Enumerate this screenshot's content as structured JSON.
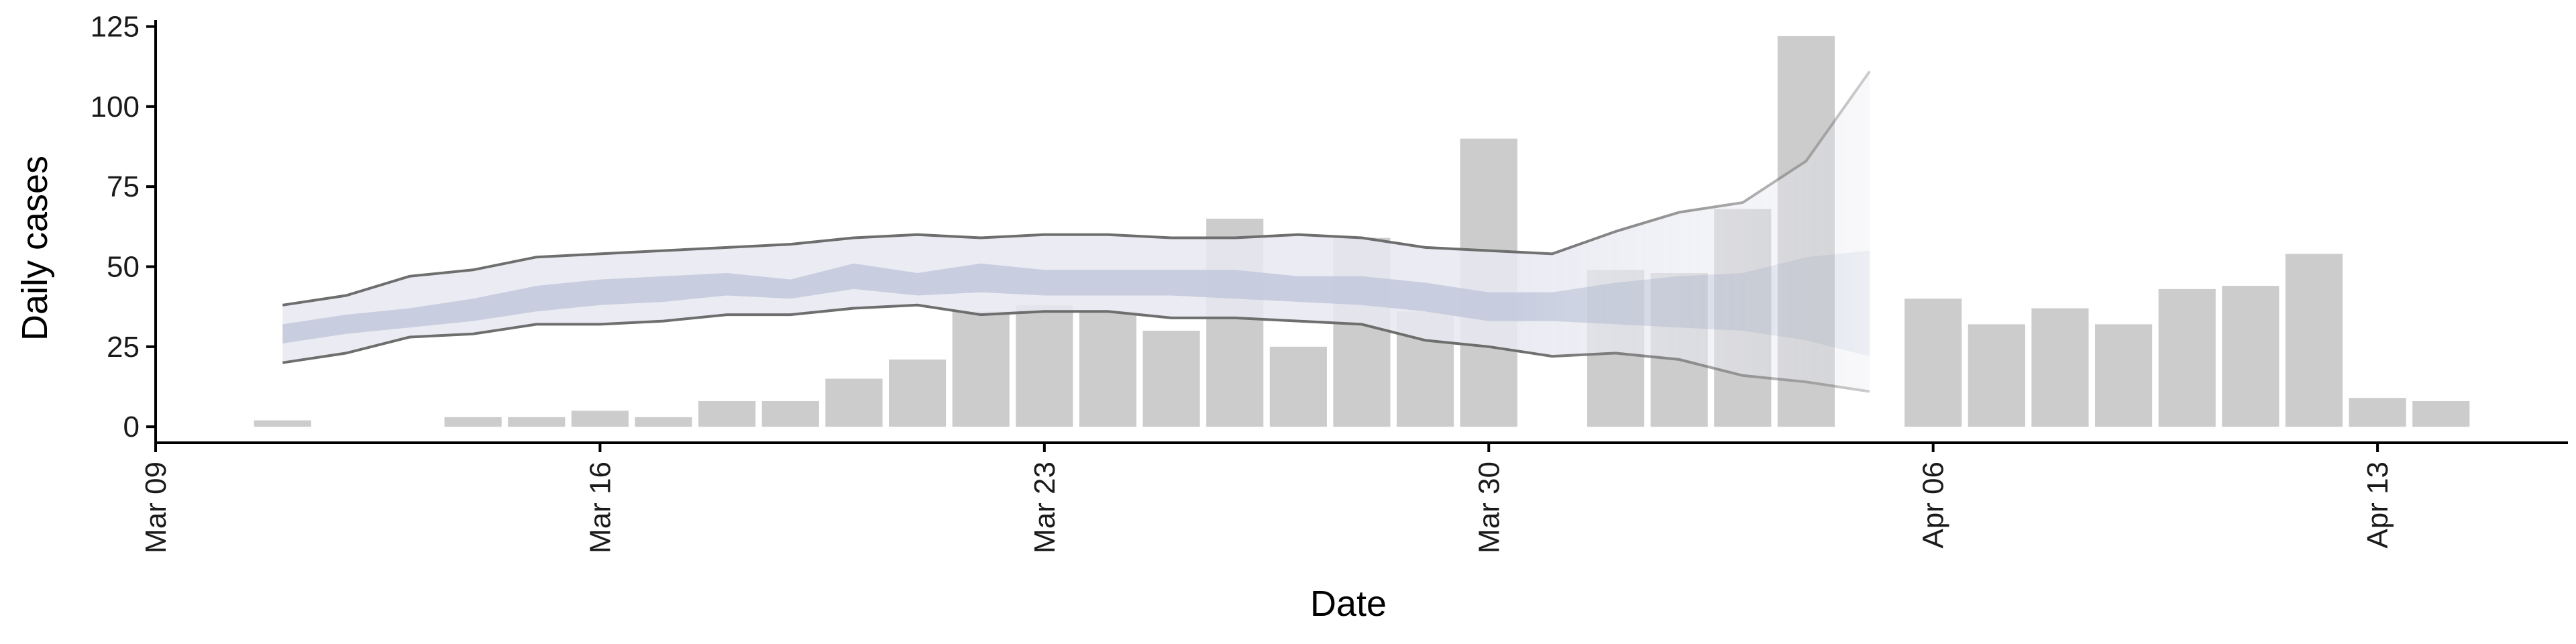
{
  "chart_data": {
    "type": "bar",
    "xlabel": "Date",
    "ylabel": "Daily cases",
    "xlim": [
      "2020-03-09",
      "2020-04-16"
    ],
    "ylim": [
      -5,
      127
    ],
    "x_ticks": [
      {
        "date": "2020-03-09",
        "label": "Mar 09"
      },
      {
        "date": "2020-03-16",
        "label": "Mar 16"
      },
      {
        "date": "2020-03-23",
        "label": "Mar 23"
      },
      {
        "date": "2020-03-30",
        "label": "Mar 30"
      },
      {
        "date": "2020-04-06",
        "label": "Apr 06"
      },
      {
        "date": "2020-04-13",
        "label": "Apr 13"
      }
    ],
    "y_ticks": [
      0,
      25,
      50,
      75,
      100,
      125
    ],
    "grid": false,
    "legend": "none",
    "colors": {
      "bars": "#cccccc",
      "outer_band": "#e8e9f1",
      "inner_band": "#c2c9dc",
      "bound_line": "#6e6e6e",
      "axis": "#000000"
    },
    "bars": [
      {
        "date": "2020-03-11",
        "value": 2
      },
      {
        "date": "2020-03-14",
        "value": 3
      },
      {
        "date": "2020-03-15",
        "value": 3
      },
      {
        "date": "2020-03-16",
        "value": 5
      },
      {
        "date": "2020-03-17",
        "value": 3
      },
      {
        "date": "2020-03-18",
        "value": 8
      },
      {
        "date": "2020-03-19",
        "value": 8
      },
      {
        "date": "2020-03-20",
        "value": 15
      },
      {
        "date": "2020-03-21",
        "value": 21
      },
      {
        "date": "2020-03-22",
        "value": 36
      },
      {
        "date": "2020-03-23",
        "value": 38
      },
      {
        "date": "2020-03-24",
        "value": 36
      },
      {
        "date": "2020-03-25",
        "value": 30
      },
      {
        "date": "2020-03-26",
        "value": 65
      },
      {
        "date": "2020-03-27",
        "value": 25
      },
      {
        "date": "2020-03-28",
        "value": 59
      },
      {
        "date": "2020-03-29",
        "value": 36
      },
      {
        "date": "2020-03-30",
        "value": 90
      },
      {
        "date": "2020-04-01",
        "value": 49
      },
      {
        "date": "2020-04-02",
        "value": 48
      },
      {
        "date": "2020-04-03",
        "value": 68
      },
      {
        "date": "2020-04-04",
        "value": 122
      },
      {
        "date": "2020-04-06",
        "value": 40
      },
      {
        "date": "2020-04-07",
        "value": 32
      },
      {
        "date": "2020-04-08",
        "value": 37
      },
      {
        "date": "2020-04-09",
        "value": 32
      },
      {
        "date": "2020-04-10",
        "value": 43
      },
      {
        "date": "2020-04-11",
        "value": 44
      },
      {
        "date": "2020-04-12",
        "value": 54
      },
      {
        "date": "2020-04-13",
        "value": 9
      },
      {
        "date": "2020-04-14",
        "value": 8
      }
    ],
    "estimate_dates": [
      "2020-03-11",
      "2020-03-12",
      "2020-03-13",
      "2020-03-14",
      "2020-03-15",
      "2020-03-16",
      "2020-03-17",
      "2020-03-18",
      "2020-03-19",
      "2020-03-20",
      "2020-03-21",
      "2020-03-22",
      "2020-03-23",
      "2020-03-24",
      "2020-03-25",
      "2020-03-26",
      "2020-03-27",
      "2020-03-28",
      "2020-03-29",
      "2020-03-30",
      "2020-03-31",
      "2020-04-01",
      "2020-04-02",
      "2020-04-03",
      "2020-04-04",
      "2020-04-05"
    ],
    "series": [
      {
        "role": "upper_90",
        "values": [
          38,
          41,
          47,
          49,
          53,
          54,
          55,
          56,
          57,
          59,
          60,
          59,
          60,
          60,
          59,
          59,
          60,
          59,
          56,
          55,
          54,
          61,
          67,
          70,
          83,
          111
        ]
      },
      {
        "role": "upper_50",
        "values": [
          32,
          35,
          37,
          40,
          44,
          46,
          47,
          48,
          46,
          51,
          48,
          51,
          49,
          49,
          49,
          49,
          47,
          47,
          45,
          42,
          42,
          45,
          47,
          48,
          53,
          55
        ]
      },
      {
        "role": "lower_50",
        "values": [
          26,
          29,
          31,
          33,
          36,
          38,
          39,
          41,
          40,
          43,
          41,
          42,
          41,
          41,
          41,
          40,
          39,
          38,
          36,
          33,
          33,
          32,
          31,
          30,
          27,
          22
        ]
      },
      {
        "role": "lower_90",
        "values": [
          20,
          23,
          28,
          29,
          32,
          32,
          33,
          35,
          35,
          37,
          38,
          35,
          36,
          36,
          34,
          34,
          33,
          32,
          27,
          25,
          22,
          23,
          21,
          16,
          14,
          11
        ]
      }
    ],
    "forecast_start": "2020-03-31"
  }
}
